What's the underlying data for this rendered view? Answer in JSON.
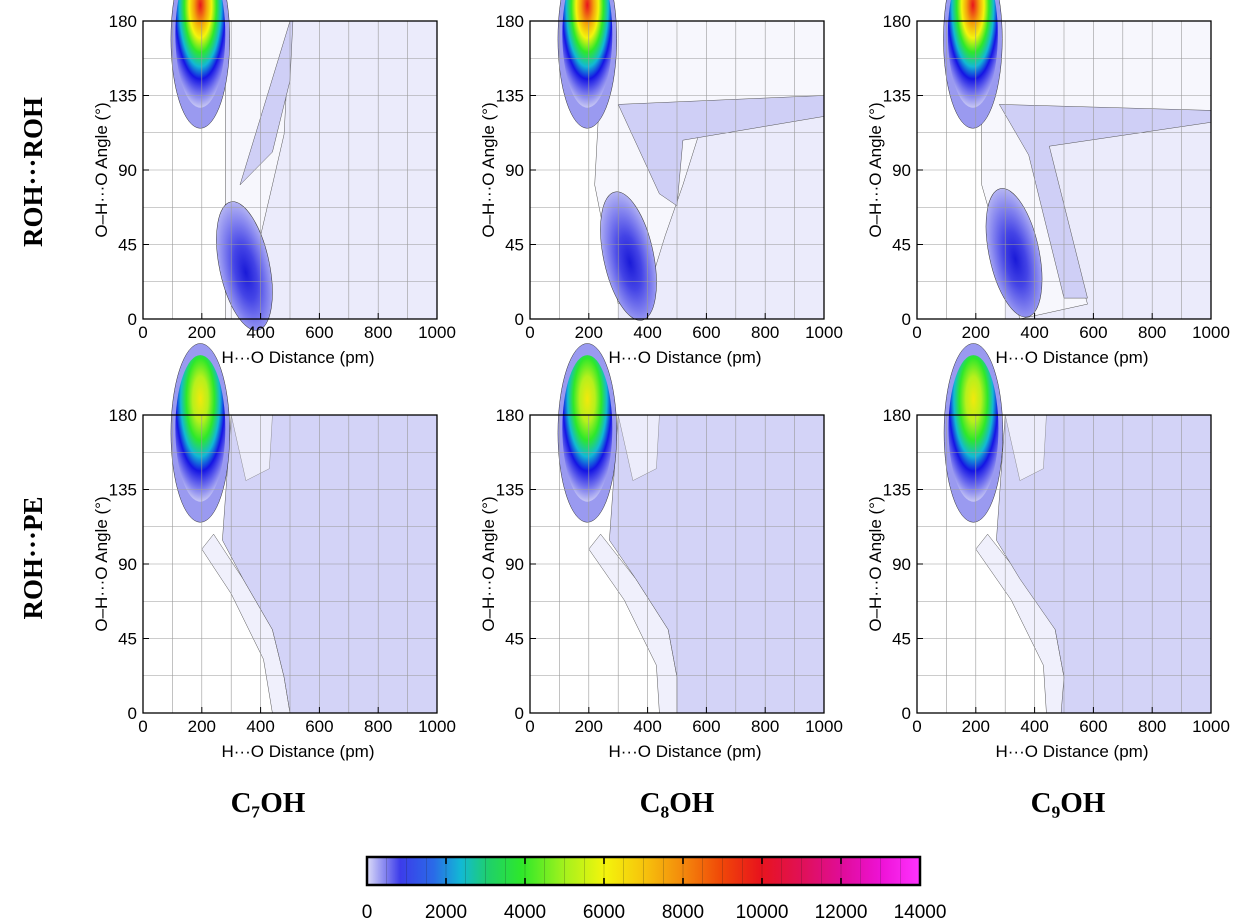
{
  "chart_data": {
    "type": "heatmap",
    "panels": [
      {
        "row": "ROH···ROH",
        "column": "C₇OH",
        "xlabel": "H···O Distance (pm)",
        "ylabel": "O–H···O Angle (°)",
        "xlim": [
          0,
          1000
        ],
        "ylim": [
          0,
          180
        ],
        "peaks": [
          {
            "x": 195,
            "y": 170,
            "value": 9000
          },
          {
            "x": 345,
            "y": 32,
            "value": 2000
          }
        ]
      },
      {
        "row": "ROH···ROH",
        "column": "C₈OH",
        "xlabel": "H···O Distance (pm)",
        "ylabel": "O–H···O Angle (°)",
        "xlim": [
          0,
          1000
        ],
        "ylim": [
          0,
          180
        ],
        "peaks": [
          {
            "x": 195,
            "y": 172,
            "value": 9000
          },
          {
            "x": 335,
            "y": 38,
            "value": 1600
          }
        ]
      },
      {
        "row": "ROH···ROH",
        "column": "C₉OH",
        "xlabel": "H···O Distance (pm)",
        "ylabel": "O–H···O Angle (°)",
        "xlim": [
          0,
          1000
        ],
        "ylim": [
          0,
          180
        ],
        "peaks": [
          {
            "x": 190,
            "y": 172,
            "value": 8500
          },
          {
            "x": 330,
            "y": 40,
            "value": 1500
          }
        ]
      },
      {
        "row": "ROH···PE",
        "column": "C₇OH",
        "xlabel": "H···O Distance (pm)",
        "ylabel": "O–H···O Angle (°)",
        "xlim": [
          0,
          1000
        ],
        "ylim": [
          0,
          180
        ],
        "peaks": [
          {
            "x": 195,
            "y": 172,
            "value": 6500
          }
        ]
      },
      {
        "row": "ROH···PE",
        "column": "C₈OH",
        "xlabel": "H···O Distance (pm)",
        "ylabel": "O–H···O Angle (°)",
        "xlim": [
          0,
          1000
        ],
        "ylim": [
          0,
          180
        ],
        "peaks": [
          {
            "x": 195,
            "y": 174,
            "value": 6000
          }
        ]
      },
      {
        "row": "ROH···PE",
        "column": "C₉OH",
        "xlabel": "H···O Distance (pm)",
        "ylabel": "O–H···O Angle (°)",
        "xlim": [
          0,
          1000
        ],
        "ylim": [
          0,
          180
        ],
        "peaks": [
          {
            "x": 192,
            "y": 174,
            "value": 5800
          }
        ]
      }
    ],
    "x_ticks": [
      "0",
      "200",
      "400",
      "600",
      "800",
      "1000"
    ],
    "y_ticks": [
      "0",
      "45",
      "90",
      "135",
      "180"
    ],
    "row_labels": [
      "ROH···ROH",
      "ROH···PE"
    ],
    "column_labels": [
      "C₇OH",
      "C₈OH",
      "C₉OH"
    ],
    "colorbar": {
      "range": [
        0,
        14000
      ],
      "ticks": [
        "0",
        "2000",
        "4000",
        "6000",
        "8000",
        "10000",
        "12000",
        "14000"
      ],
      "colors": [
        "#dcdcf8",
        "#7474ee",
        "#1414e4",
        "#2a6ae8",
        "#12b9d4",
        "#1fd06a",
        "#2ee82a",
        "#a8f21c",
        "#f4f40c",
        "#f6c40c",
        "#f48a0c",
        "#f04808",
        "#e8141c",
        "#e00c7c",
        "#ee12d6",
        "#ff33ff"
      ]
    },
    "grid": true
  }
}
